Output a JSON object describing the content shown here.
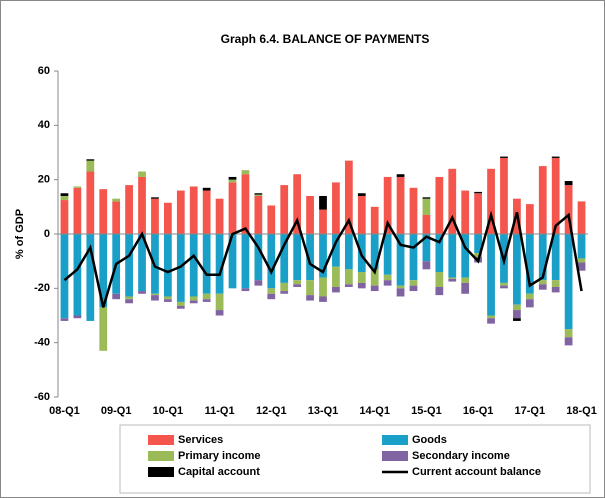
{
  "chart_data": {
    "type": "bar",
    "stacked": true,
    "title": "Graph 6.4. BALANCE OF PAYMENTS",
    "y_label": "% of GDP",
    "categories": [
      "08-Q1",
      null,
      null,
      null,
      "09-Q1",
      null,
      null,
      null,
      "10-Q1",
      null,
      null,
      null,
      "11-Q1",
      null,
      null,
      null,
      "12-Q1",
      null,
      null,
      null,
      "13-Q1",
      null,
      null,
      null,
      "14-Q1",
      null,
      null,
      null,
      "15-Q1",
      null,
      null,
      null,
      "16-Q1",
      null,
      null,
      null,
      "17-Q1",
      null,
      null,
      null,
      "18-Q1"
    ],
    "ylim": [
      -60,
      60
    ],
    "yticks": [
      60,
      40,
      20,
      0,
      -20,
      -40,
      -60
    ],
    "grid": false,
    "legend": "bottom",
    "series": [
      {
        "name": "Services",
        "color": "#f4564e",
        "values": [
          12.5,
          17,
          23,
          16.5,
          12,
          18,
          21,
          13,
          11.5,
          16,
          17.5,
          16,
          13,
          19,
          22,
          14,
          10.5,
          18,
          22,
          14,
          9,
          19,
          27,
          14,
          10,
          21,
          21,
          17,
          7,
          21,
          24,
          16,
          15,
          24,
          28,
          13,
          11,
          25,
          28,
          18,
          12
        ]
      },
      {
        "name": "Goods",
        "color": "#1aa0c8",
        "values": [
          -31,
          -30,
          -32,
          -27,
          -22,
          -23,
          -21,
          -22,
          -23,
          -25,
          -23,
          -22,
          -22,
          -20,
          -20,
          -17,
          -20,
          -18,
          -17,
          -17,
          -16,
          -12,
          -13,
          -14,
          -13,
          -15,
          -19,
          -17,
          -10,
          -14,
          -16,
          -16,
          -7,
          -30,
          -18,
          -26,
          -22,
          -17,
          -17,
          -35,
          -9
        ]
      },
      {
        "name": "Primary income",
        "color": "#9bbb59",
        "values": [
          1.5,
          0.5,
          4,
          -16,
          1,
          -1,
          2,
          -0.5,
          -1,
          -1.5,
          -1.5,
          -2,
          -6,
          1,
          1.5,
          0.5,
          -2,
          -3,
          -1.5,
          -5.5,
          -7,
          -7.5,
          -5.5,
          -4,
          -6,
          -2,
          -1,
          -2,
          6,
          -5.5,
          -0.5,
          -2,
          -1.5,
          -1,
          -1,
          -2,
          -2,
          -1.5,
          -2.5,
          -3,
          -1.5
        ]
      },
      {
        "name": "Secondary income",
        "color": "#8064a2",
        "values": [
          -1,
          -1,
          0,
          0,
          -2,
          -1.5,
          -1,
          -2,
          -1,
          -1,
          -1,
          -1,
          -2,
          0,
          -1,
          -2,
          -2,
          -1,
          -1,
          -2,
          -2,
          -2,
          -1,
          -2,
          -2,
          -2,
          -3,
          -2,
          -3,
          -3,
          -1,
          -4,
          -2,
          -2,
          -1,
          -3,
          -3,
          -2,
          -2,
          -3,
          -3
        ]
      },
      {
        "name": "Capital account",
        "color": "#000000",
        "values": [
          1,
          0,
          0.5,
          0,
          0,
          0,
          0,
          0.5,
          0,
          0,
          0,
          1,
          0,
          1,
          0,
          0.5,
          0,
          0,
          0,
          0,
          5,
          0,
          0,
          1,
          0,
          0,
          1,
          0,
          0.5,
          0,
          0,
          0,
          0.5,
          0,
          0.5,
          -1,
          0,
          0,
          0.5,
          1.5,
          0
        ]
      },
      {
        "name": "Current account balance",
        "color": "#000000",
        "type": "line",
        "values": [
          -17,
          -13,
          -5,
          -27,
          -11,
          -8,
          0,
          -12,
          -14,
          -12,
          -8,
          -15,
          -15,
          0,
          2,
          -5,
          -14,
          -4,
          5,
          -11,
          -14,
          -3,
          5,
          -8,
          -14,
          4,
          -4,
          -5,
          -1,
          -3,
          6,
          -5,
          -10,
          7,
          -10,
          8,
          -19,
          -16,
          3,
          7,
          -21
        ]
      }
    ]
  }
}
